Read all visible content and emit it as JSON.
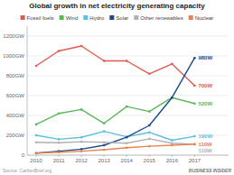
{
  "chart_data": {
    "type": "line",
    "title": "Global growth in net electricity generating capacity",
    "x": [
      2010,
      2011,
      2012,
      2013,
      2014,
      2015,
      2016,
      2017
    ],
    "xlim": [
      2009.6,
      2018.5
    ],
    "xticks": [
      2010,
      2011,
      2012,
      2013,
      2014,
      2015,
      2016,
      2017
    ],
    "series": [
      {
        "name": "Fossil fuels",
        "color": "#e05a4e",
        "values": [
          900,
          1050,
          1100,
          950,
          950,
          820,
          920,
          700
        ]
      },
      {
        "name": "Wind",
        "color": "#5cb85c",
        "values": [
          310,
          420,
          460,
          320,
          490,
          440,
          580,
          520
        ]
      },
      {
        "name": "Hydro",
        "color": "#5bc0de",
        "values": [
          200,
          160,
          180,
          240,
          185,
          230,
          150,
          190
        ]
      },
      {
        "name": "Solar",
        "color": "#1a4a8a",
        "values": [
          20,
          40,
          60,
          100,
          180,
          300,
          580,
          980
        ]
      },
      {
        "name": "Other renewables",
        "color": "#b0b0b0",
        "values": [
          130,
          125,
          135,
          130,
          120,
          165,
          120,
          110
        ]
      },
      {
        "name": "Nuclear",
        "color": "#e8824e",
        "values": [
          20,
          30,
          40,
          55,
          75,
          90,
          100,
          110
        ]
      }
    ],
    "ylim": [
      0,
      1300
    ],
    "yticks": [
      0,
      {
        "value": 200,
        "label": "200GW"
      },
      {
        "value": 400,
        "label": "400GW"
      },
      {
        "value": 600,
        "label": "600GW"
      },
      {
        "value": 800,
        "label": "800GW"
      },
      {
        "value": 1000,
        "label": "1000GW"
      },
      {
        "value": 1200,
        "label": "1200GW"
      }
    ],
    "grid": true,
    "legend": "top",
    "marker": "circle",
    "annotations": [
      {
        "text": "980W",
        "series": "Solar"
      },
      {
        "text": "700W",
        "series": "Fossil fuels"
      },
      {
        "text": "520W",
        "series": "Wind"
      },
      {
        "text": "190W",
        "series": "Hydro"
      },
      {
        "text": "110W",
        "series": "Nuclear"
      },
      {
        "text": "110W",
        "series": "Other renewables"
      },
      {
        "text": "Source: CarbonBrief.org"
      },
      {
        "text": "BUSINESS INSIDER"
      }
    ]
  }
}
